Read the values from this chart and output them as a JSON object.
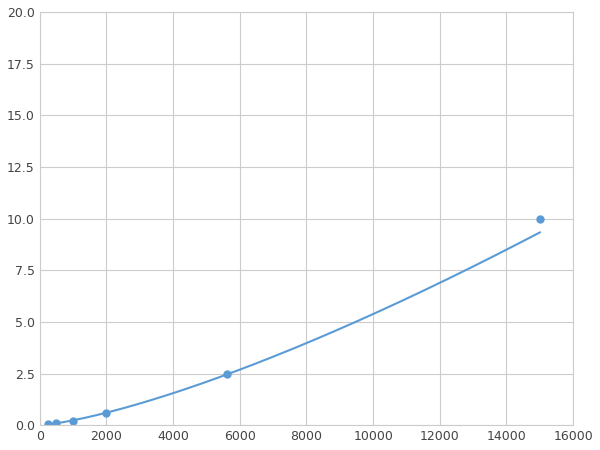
{
  "x": [
    250,
    500,
    1000,
    2000,
    5625,
    15000
  ],
  "y": [
    0.04,
    0.1,
    0.18,
    0.6,
    2.5,
    10.0
  ],
  "line_color": "#5b9bd5",
  "marker_color": "#5b9bd5",
  "marker_size": 5,
  "xlim": [
    0,
    16000
  ],
  "ylim": [
    0,
    20.0
  ],
  "xticks": [
    0,
    2000,
    4000,
    6000,
    8000,
    10000,
    12000,
    14000,
    16000
  ],
  "yticks": [
    0.0,
    2.5,
    5.0,
    7.5,
    10.0,
    12.5,
    15.0,
    17.5,
    20.0
  ],
  "grid": true,
  "background_color": "#ffffff",
  "figsize": [
    6.0,
    4.5
  ],
  "dpi": 100
}
